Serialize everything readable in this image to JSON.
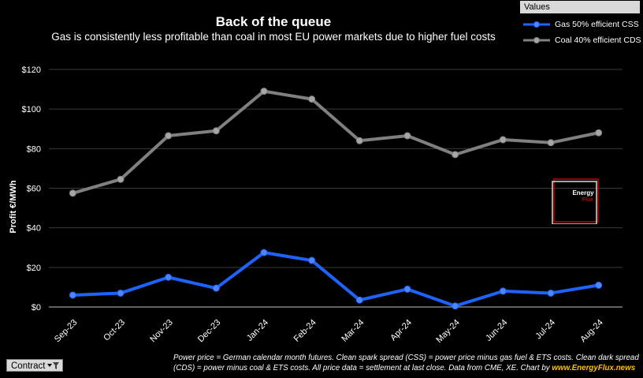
{
  "chart_data": {
    "type": "line",
    "title": "Back of the queue",
    "subtitle": "Gas is consistently less profitable than coal in most EU  power markets due to higher fuel costs",
    "ylabel": "Profit €/MWh",
    "xlabel": "",
    "ylim": [
      0,
      120
    ],
    "y_ticks": [
      "$0",
      "$20",
      "$40",
      "$60",
      "$80",
      "$100",
      "$120"
    ],
    "y_tick_values": [
      0,
      20,
      40,
      60,
      80,
      100,
      120
    ],
    "grid": true,
    "legend_position": "top-right",
    "categories": [
      "Sep-23",
      "Oct-23",
      "Nov-23",
      "Dec-23",
      "Jan-24",
      "Feb-24",
      "Mar-24",
      "Apr-24",
      "May-24",
      "Jun-24",
      "Jul-24",
      "Aug-24"
    ],
    "series": [
      {
        "name": "Gas 50% efficient CSS",
        "color": "#1f63ff",
        "values": [
          6,
          7,
          15,
          9.5,
          27.5,
          23.5,
          3.5,
          9,
          0.5,
          8,
          7,
          11
        ]
      },
      {
        "name": "Coal 40% efficient CDS",
        "color": "#808080",
        "values": [
          57.5,
          64.5,
          86.5,
          89,
          109,
          105,
          84,
          86.5,
          77,
          84.5,
          83,
          88
        ]
      }
    ]
  },
  "legend": {
    "header": "Values"
  },
  "filter": {
    "label": "Contract",
    "icon": "filter-dropdown-icon"
  },
  "footnote": {
    "text": "Power price = German calendar month futures. Clean spark spread (CSS) = power price minus gas fuel & ETS costs. Clean dark spread (CDS) = power minus coal & ETS costs. All price data = settlement at last close. Data from CME, XE. Chart by ",
    "source": "www.EnergyFlux.news"
  },
  "watermark": {
    "line1": "Energy",
    "line2": "Flux",
    "accent": "#c00000"
  }
}
